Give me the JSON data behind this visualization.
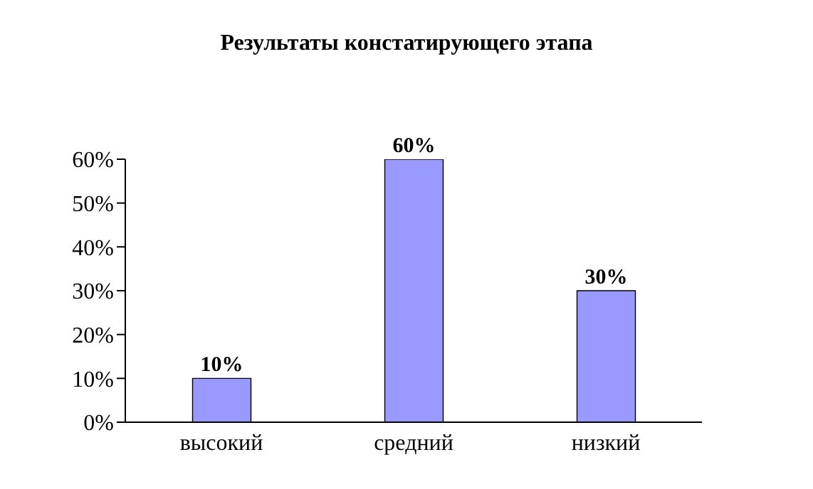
{
  "chart_data": {
    "type": "bar",
    "title": "Результаты констатирующего этапа",
    "categories": [
      "высокий",
      "средний",
      "низкий"
    ],
    "values": [
      10,
      60,
      30
    ],
    "color": "#9999ff",
    "value_labels": [
      "10%",
      "60%",
      "30%"
    ],
    "ylim": [
      0,
      60
    ],
    "yticks": [
      {
        "value": 0,
        "label": "0%"
      },
      {
        "value": 10,
        "label": "10%"
      },
      {
        "value": 20,
        "label": "20%"
      },
      {
        "value": 30,
        "label": "30%"
      },
      {
        "value": 40,
        "label": "40%"
      },
      {
        "value": 50,
        "label": "50%"
      },
      {
        "value": 60,
        "label": "60%"
      }
    ],
    "grid": false,
    "legend": false
  }
}
